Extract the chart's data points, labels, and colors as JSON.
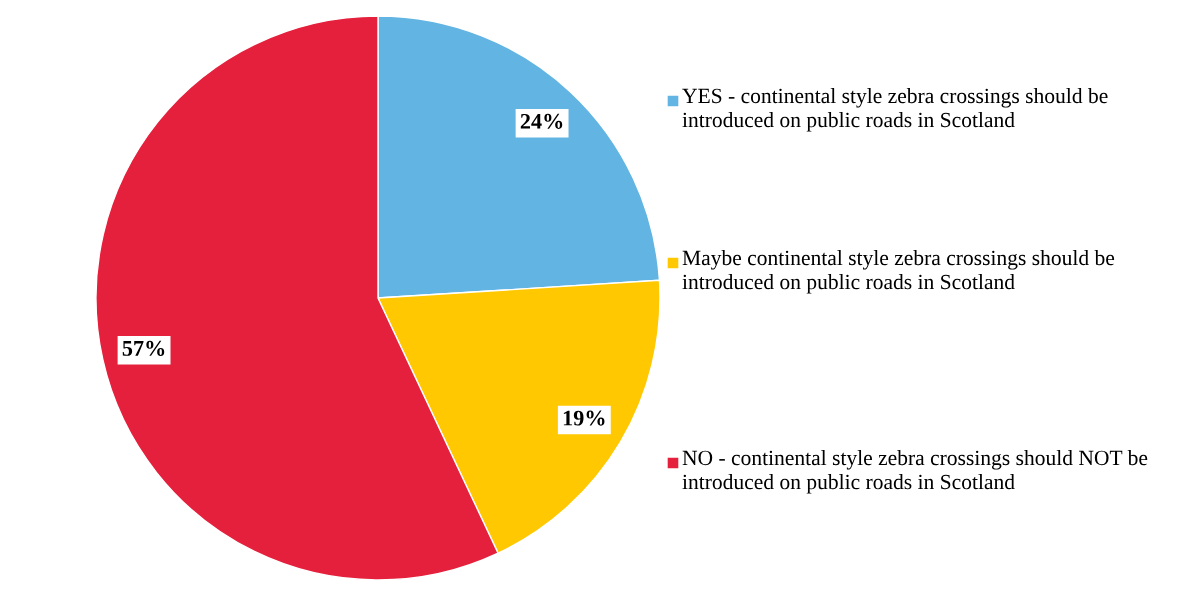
{
  "chart_data": {
    "type": "pie",
    "categories": [
      "YES - continental style zebra crossings should be introduced on public roads in Scotland",
      "Maybe continental style zebra crossings should be introduced on public roads in Scotland",
      "NO - continental style zebra crossings should NOT be introduced on public roads in Scotland"
    ],
    "values": [
      24,
      19,
      57
    ],
    "colors": [
      "#62b4e3",
      "#ffc800",
      "#e4203c"
    ],
    "value_labels": [
      "24%",
      "19%",
      "57%"
    ],
    "legend": "right"
  }
}
